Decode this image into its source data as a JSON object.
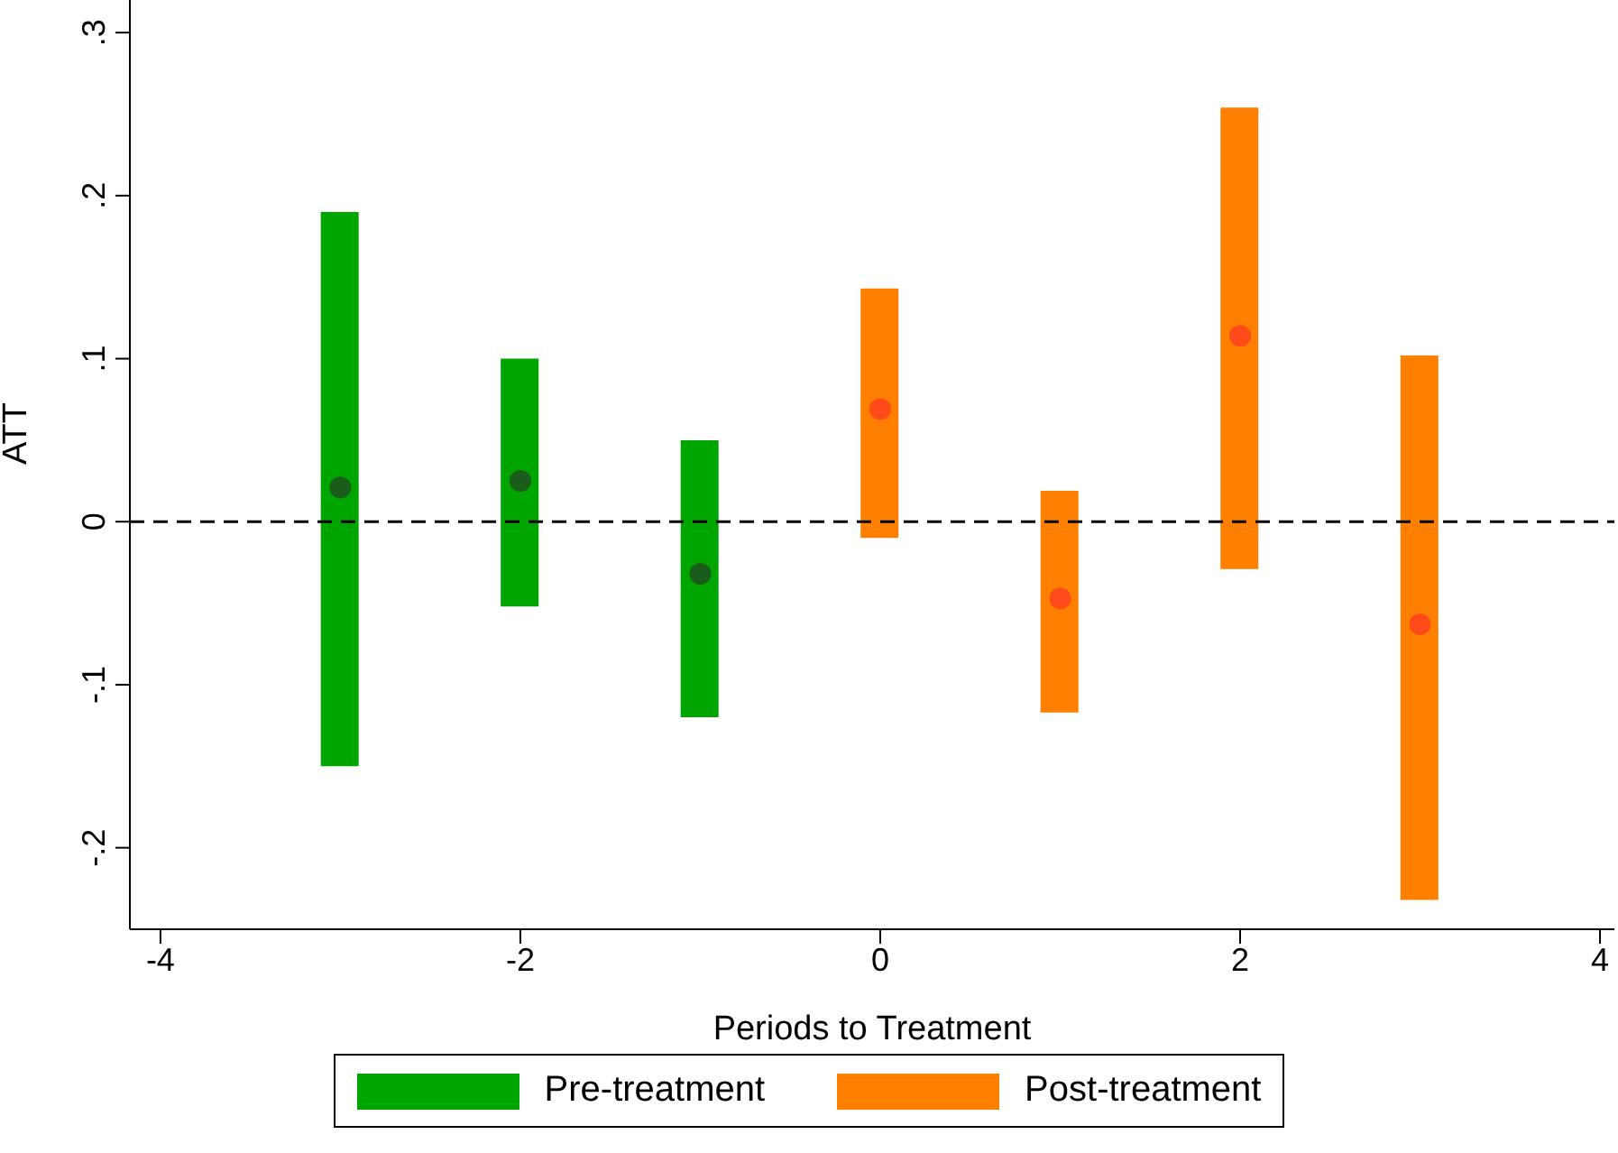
{
  "chart_data": {
    "type": "bar",
    "xlabel": "Periods to Treatment",
    "ylabel": "ATT",
    "xlim": [
      -4.17,
      4.08
    ],
    "xticks": [
      -4,
      -2,
      0,
      2,
      4
    ],
    "ylim": [
      -0.25,
      0.32
    ],
    "yticks": [
      {
        "value": -0.2,
        "label": "-.2"
      },
      {
        "value": -0.1,
        "label": "-.1"
      },
      0,
      {
        "value": 0.1,
        "label": ".1"
      },
      {
        "value": 0.2,
        "label": ".2"
      },
      {
        "value": 0.3,
        "label": ".3"
      }
    ],
    "grid": false,
    "legend": "bottom",
    "series": [
      {
        "name": "Pre-treatment",
        "color": "#00a500",
        "x": [
          -3,
          -2,
          -1
        ],
        "base": [
          -0.15,
          -0.052,
          -0.12
        ],
        "values": [
          0.34,
          0.152,
          0.17
        ]
      },
      {
        "name": "Post-treatment",
        "color": "#ff8000",
        "x": [
          0,
          1,
          2,
          3
        ],
        "base": [
          -0.01,
          -0.117,
          -0.029,
          -0.232
        ],
        "values": [
          0.153,
          0.136,
          0.283,
          0.334
        ]
      },
      {
        "type": "scatter",
        "color": "#1a5c1a",
        "marker": "circle",
        "x": [
          -3,
          -2,
          -1
        ],
        "values": [
          0.021,
          0.025,
          -0.032
        ]
      },
      {
        "type": "scatter",
        "color": "#ff4a1a",
        "marker": "circle",
        "x": [
          0,
          1,
          2,
          3
        ],
        "values": [
          0.069,
          -0.047,
          0.114,
          -0.063
        ]
      }
    ],
    "ref_lines": [
      {
        "axis": "y",
        "value": 0,
        "color": "#000000",
        "line_style": "dashed"
      }
    ]
  }
}
